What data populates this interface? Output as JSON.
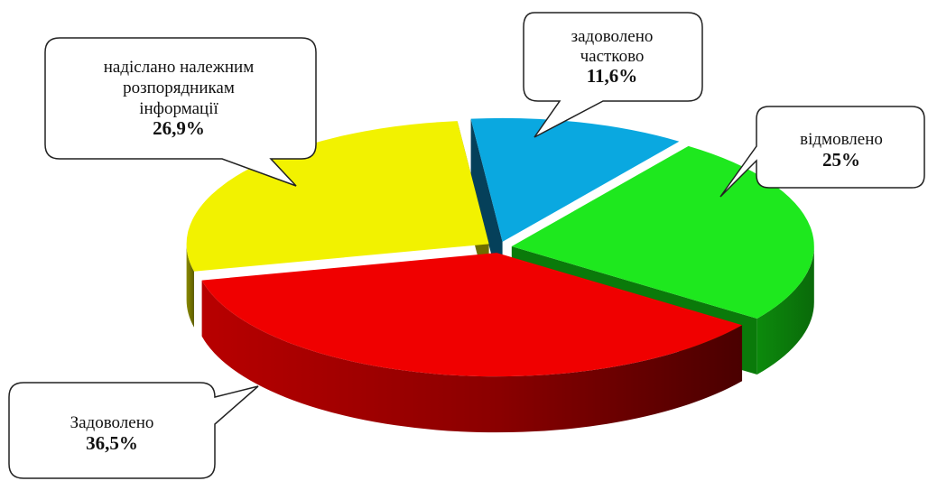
{
  "chart_data": {
    "type": "pie",
    "title": "",
    "slices": [
      {
        "label_lines": [
          "задоволено",
          "частково"
        ],
        "value": 11.6,
        "value_label": "11,6%",
        "color": "#0aa8e0"
      },
      {
        "label_lines": [
          "відмовлено"
        ],
        "value": 25,
        "value_label": "25%",
        "color": "#1ee81e"
      },
      {
        "label_lines": [
          "Задоволено"
        ],
        "value": 36.5,
        "value_label": "36,5%",
        "color": "#f00000"
      },
      {
        "label_lines": [
          "надіслано належним",
          "розпорядникам",
          "інформації"
        ],
        "value": 26.9,
        "value_label": "26,9%",
        "color": "#f2f200"
      }
    ]
  }
}
